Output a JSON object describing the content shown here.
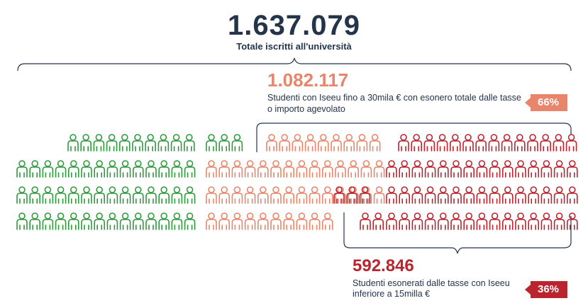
{
  "total": {
    "value": "1.637.079",
    "label": "Totale iscritti all'università"
  },
  "agevolati": {
    "value": "1.082.117",
    "description": "Studenti con Iseeu fino a 30mila € con esonero totale dalle tasse o importo agevolato",
    "percent": "66%"
  },
  "esonerati": {
    "value": "592.846",
    "description": "Studenti esonerati dalle tasse con Iseeu inferiore a 15milla €",
    "percent": "36%"
  },
  "colors": {
    "dark": "#24344b",
    "green": "#2e9a3c",
    "salmon": "#e8856a",
    "red": "#b9242e"
  }
}
